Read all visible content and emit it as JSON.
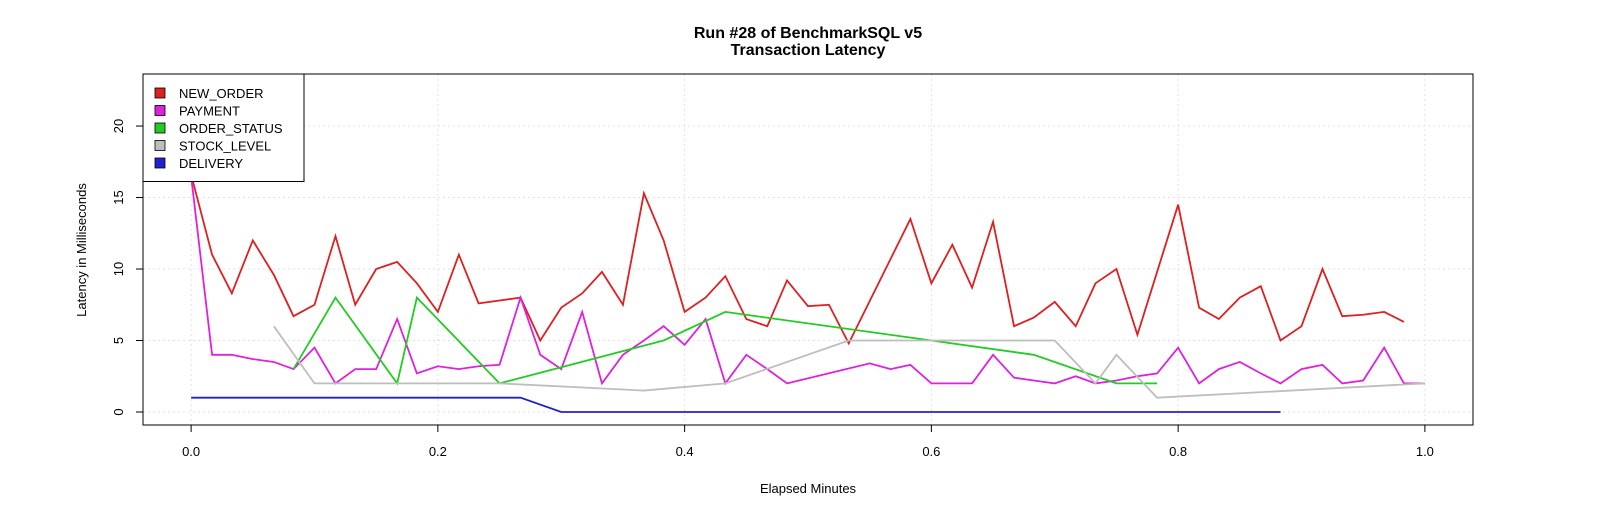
{
  "chart_data": {
    "type": "line",
    "title": "Run #28 of BenchmarkSQL v5",
    "subtitle": "Transaction Latency",
    "x_label": "Elapsed Minutes",
    "y_label": "Latency in Milliseconds",
    "xlim": [
      -0.039,
      1.039
    ],
    "ylim": [
      -0.91,
      23.64
    ],
    "xticks": [
      {
        "value": 0,
        "label": "0.0"
      },
      {
        "value": 0.2,
        "label": "0.2"
      },
      {
        "value": 0.4,
        "label": "0.4"
      },
      {
        "value": 0.6,
        "label": "0.6"
      },
      {
        "value": 0.8,
        "label": "0.8"
      },
      {
        "value": 1,
        "label": "1.0"
      }
    ],
    "yticks": [
      0,
      5,
      10,
      15,
      20
    ],
    "grid": true,
    "legend": "top-left",
    "series": [
      {
        "name": "NEW_ORDER",
        "color": "#dd2020",
        "x": [
          0,
          0.017,
          0.033,
          0.05,
          0.067,
          0.083,
          0.1,
          0.117,
          0.133,
          0.15,
          0.167,
          0.183,
          0.2,
          0.217,
          0.233,
          0.25,
          0.267,
          0.283,
          0.3,
          0.317,
          0.333,
          0.35,
          0.367,
          0.383,
          0.4,
          0.417,
          0.433,
          0.45,
          0.467,
          0.483,
          0.5,
          0.517,
          0.533,
          0.583,
          0.6,
          0.617,
          0.633,
          0.65,
          0.667,
          0.683,
          0.7,
          0.717,
          0.733,
          0.75,
          0.767,
          0.8,
          0.817,
          0.833,
          0.85,
          0.867,
          0.883,
          0.9,
          0.917,
          0.933,
          0.95,
          0.967,
          0.983
        ],
        "values": [
          16.6,
          11,
          8.3,
          12,
          9.6,
          6.7,
          7.5,
          12.3,
          7.5,
          10,
          10.5,
          9,
          7,
          11,
          7.6,
          7.8,
          8,
          5,
          7.3,
          8.3,
          9.8,
          7.5,
          15.3,
          12,
          7,
          8,
          9.5,
          6.5,
          6,
          9.2,
          7.4,
          7.5,
          4.8,
          13.5,
          9,
          11.7,
          8.7,
          13.3,
          6,
          6.6,
          7.7,
          6,
          9,
          10,
          5.4,
          14.5,
          7.3,
          6.5,
          8,
          8.8,
          5,
          6,
          10,
          6.7,
          6.8,
          7,
          6.3
        ]
      },
      {
        "name": "PAYMENT",
        "color": "#dd22dd",
        "x": [
          0,
          0.017,
          0.033,
          0.05,
          0.067,
          0.083,
          0.1,
          0.117,
          0.133,
          0.15,
          0.167,
          0.183,
          0.2,
          0.217,
          0.233,
          0.25,
          0.267,
          0.283,
          0.3,
          0.317,
          0.333,
          0.35,
          0.367,
          0.383,
          0.4,
          0.417,
          0.433,
          0.45,
          0.467,
          0.483,
          0.55,
          0.567,
          0.583,
          0.6,
          0.617,
          0.633,
          0.65,
          0.667,
          0.683,
          0.7,
          0.717,
          0.733,
          0.75,
          0.767,
          0.783,
          0.8,
          0.817,
          0.833,
          0.85,
          0.867,
          0.883,
          0.9,
          0.917,
          0.933,
          0.95,
          0.967,
          0.983,
          1
        ],
        "values": [
          16.5,
          4,
          4,
          3.7,
          3.5,
          3,
          4.5,
          2,
          3,
          3,
          6.5,
          2.7,
          3.2,
          3,
          3.2,
          3.3,
          8,
          4,
          3,
          7,
          2,
          4,
          5,
          6,
          4.7,
          6.5,
          2,
          4,
          3,
          2,
          3.4,
          3,
          3.3,
          2,
          2,
          2,
          4,
          2.4,
          2.2,
          2,
          2.5,
          2,
          2.2,
          2.5,
          2.7,
          4.5,
          2,
          3,
          3.5,
          2.7,
          2,
          3,
          3.3,
          2,
          2.2,
          4.5,
          2,
          2
        ]
      },
      {
        "name": "ORDER_STATUS",
        "color": "#22cc22",
        "x": [
          0.083,
          0.117,
          0.167,
          0.183,
          0.25,
          0.383,
          0.433,
          0.6,
          0.683,
          0.75,
          0.783
        ],
        "values": [
          3,
          8,
          2,
          8,
          2,
          5,
          7,
          5,
          4,
          2,
          2
        ]
      },
      {
        "name": "STOCK_LEVEL",
        "color": "#bebebe",
        "x": [
          0.067,
          0.1,
          0.25,
          0.367,
          0.433,
          0.533,
          0.7,
          0.733,
          0.75,
          0.783,
          1
        ],
        "values": [
          6,
          2,
          2,
          1.5,
          2,
          5,
          5,
          2,
          4,
          1,
          2
        ]
      },
      {
        "name": "DELIVERY",
        "color": "#2222cc",
        "x": [
          0,
          0.267,
          0.3,
          0.883
        ],
        "values": [
          1,
          1,
          0,
          0
        ]
      }
    ]
  }
}
